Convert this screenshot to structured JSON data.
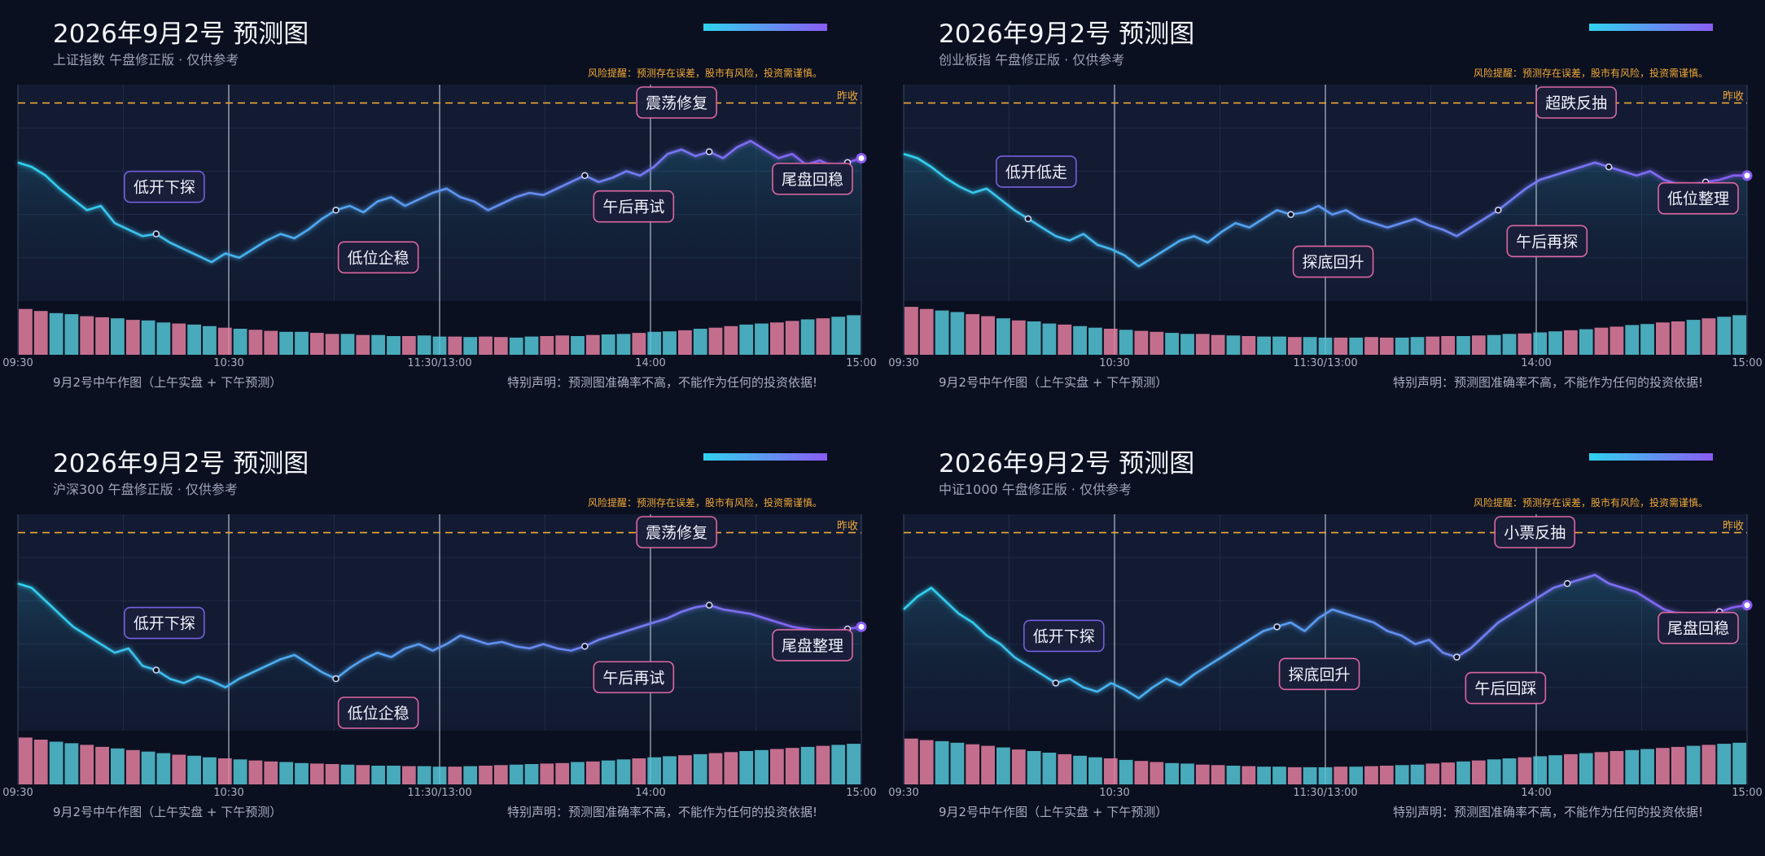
{
  "time_ticks": [
    "09:30",
    "10:30",
    "11:30/13:00",
    "14:00",
    "15:00"
  ],
  "prev_close_label": "昨收",
  "risk_note": "风险提醒：预测存在误差，股市有风险，投资需谨慎。",
  "caption": "9月2号中午作图（上午实盘 + 下午预测）",
  "disclaimer": "特别声明：预测图准确率不高，不能作为任何的投资依据!",
  "colors": {
    "background": "#0b1020",
    "plot_bg": "#142039",
    "line_start": "#2fd2ee",
    "line_end": "#8a5cf3",
    "prev_close": "#f0a938",
    "up_bar": "#e57fa2",
    "down_bar": "#54c6d6",
    "label_border": "#e66aa6"
  },
  "chart_data": [
    {
      "type": "line",
      "title": "2026年9月2号 预测图",
      "subtitle": "上证指数 午盘修正版 · 仅供参考",
      "reference_line": {
        "label": "昨收",
        "value": 1.0
      },
      "series": [
        {
          "values": [
            0.64,
            0.62,
            0.58,
            0.52,
            0.47,
            0.42,
            0.44,
            0.36,
            0.33,
            0.3,
            0.31,
            0.27,
            0.24,
            0.21,
            0.18,
            0.22,
            0.2,
            0.24,
            0.28,
            0.31,
            0.29,
            0.33,
            0.38,
            0.42,
            0.44,
            0.41,
            0.46,
            0.48,
            0.44,
            0.47,
            0.5,
            0.52,
            0.48,
            0.46,
            0.42,
            0.45,
            0.48,
            0.5,
            0.49,
            0.52,
            0.55,
            0.58,
            0.55,
            0.57,
            0.6,
            0.58,
            0.62,
            0.68,
            0.7,
            0.67,
            0.69,
            0.66,
            0.71,
            0.74,
            0.7,
            0.66,
            0.68,
            0.63,
            0.65,
            0.62,
            0.64,
            0.66
          ]
        }
      ],
      "volume": [
        0.88,
        0.84,
        0.8,
        0.78,
        0.74,
        0.72,
        0.7,
        0.67,
        0.66,
        0.62,
        0.6,
        0.58,
        0.55,
        0.52,
        0.5,
        0.48,
        0.46,
        0.44,
        0.44,
        0.42,
        0.4,
        0.4,
        0.38,
        0.38,
        0.36,
        0.36,
        0.37,
        0.35,
        0.35,
        0.34,
        0.35,
        0.34,
        0.33,
        0.35,
        0.36,
        0.37,
        0.36,
        0.38,
        0.39,
        0.4,
        0.42,
        0.44,
        0.45,
        0.47,
        0.5,
        0.52,
        0.55,
        0.58,
        0.6,
        0.62,
        0.65,
        0.68,
        0.7,
        0.73,
        0.76
      ],
      "annotations": [
        {
          "text": "低开下探",
          "index": 10
        },
        {
          "text": "低位企稳",
          "index": 23
        },
        {
          "text": "午后再试",
          "index": 41
        },
        {
          "text": "震荡修复",
          "index": 50
        },
        {
          "text": "尾盘回稳",
          "index": 60
        }
      ]
    },
    {
      "type": "line",
      "title": "2026年9月2号 预测图",
      "subtitle": "创业板指 午盘修正版 · 仅供参考",
      "reference_line": {
        "label": "昨收",
        "value": 1.0
      },
      "series": [
        {
          "values": [
            0.68,
            0.66,
            0.62,
            0.57,
            0.53,
            0.5,
            0.52,
            0.47,
            0.42,
            0.38,
            0.34,
            0.3,
            0.28,
            0.31,
            0.26,
            0.24,
            0.21,
            0.16,
            0.2,
            0.24,
            0.28,
            0.3,
            0.27,
            0.32,
            0.36,
            0.34,
            0.38,
            0.42,
            0.4,
            0.41,
            0.44,
            0.4,
            0.42,
            0.38,
            0.36,
            0.34,
            0.36,
            0.38,
            0.35,
            0.33,
            0.3,
            0.34,
            0.38,
            0.42,
            0.47,
            0.52,
            0.56,
            0.58,
            0.6,
            0.62,
            0.64,
            0.62,
            0.6,
            0.58,
            0.6,
            0.56,
            0.54,
            0.53,
            0.55,
            0.56,
            0.58,
            0.58
          ]
        }
      ],
      "volume": [
        0.92,
        0.88,
        0.85,
        0.82,
        0.78,
        0.74,
        0.7,
        0.66,
        0.64,
        0.6,
        0.58,
        0.55,
        0.52,
        0.5,
        0.48,
        0.46,
        0.44,
        0.42,
        0.4,
        0.4,
        0.38,
        0.37,
        0.36,
        0.35,
        0.35,
        0.34,
        0.34,
        0.33,
        0.33,
        0.33,
        0.34,
        0.33,
        0.33,
        0.34,
        0.35,
        0.36,
        0.36,
        0.37,
        0.38,
        0.4,
        0.41,
        0.43,
        0.45,
        0.47,
        0.49,
        0.52,
        0.54,
        0.57,
        0.59,
        0.62,
        0.64,
        0.67,
        0.7,
        0.73,
        0.76
      ],
      "annotations": [
        {
          "text": "低开低走",
          "index": 9
        },
        {
          "text": "探底回升",
          "index": 28
        },
        {
          "text": "午后再探",
          "index": 43
        },
        {
          "text": "超跌反抽",
          "index": 51
        },
        {
          "text": "低位整理",
          "index": 58
        }
      ]
    },
    {
      "type": "line",
      "title": "2026年9月2号 预测图",
      "subtitle": "沪深300 午盘修正版 · 仅供参考",
      "reference_line": {
        "label": "昨收",
        "value": 1.0
      },
      "series": [
        {
          "values": [
            0.68,
            0.66,
            0.6,
            0.54,
            0.48,
            0.44,
            0.4,
            0.36,
            0.38,
            0.3,
            0.28,
            0.24,
            0.22,
            0.25,
            0.23,
            0.2,
            0.24,
            0.27,
            0.3,
            0.33,
            0.35,
            0.31,
            0.27,
            0.24,
            0.29,
            0.33,
            0.36,
            0.34,
            0.38,
            0.4,
            0.37,
            0.4,
            0.44,
            0.42,
            0.4,
            0.41,
            0.39,
            0.38,
            0.4,
            0.38,
            0.37,
            0.39,
            0.42,
            0.44,
            0.46,
            0.48,
            0.5,
            0.52,
            0.55,
            0.57,
            0.58,
            0.56,
            0.55,
            0.54,
            0.52,
            0.5,
            0.48,
            0.47,
            0.46,
            0.45,
            0.47,
            0.48
          ]
        }
      ],
      "volume": [
        0.9,
        0.86,
        0.82,
        0.79,
        0.76,
        0.72,
        0.69,
        0.66,
        0.63,
        0.6,
        0.57,
        0.55,
        0.52,
        0.5,
        0.48,
        0.46,
        0.44,
        0.43,
        0.41,
        0.4,
        0.39,
        0.38,
        0.37,
        0.36,
        0.36,
        0.35,
        0.35,
        0.34,
        0.34,
        0.35,
        0.36,
        0.37,
        0.38,
        0.39,
        0.4,
        0.41,
        0.43,
        0.44,
        0.46,
        0.48,
        0.5,
        0.52,
        0.54,
        0.56,
        0.58,
        0.6,
        0.62,
        0.64,
        0.66,
        0.68,
        0.7,
        0.72,
        0.74,
        0.76,
        0.78
      ],
      "annotations": [
        {
          "text": "低开下探",
          "index": 10
        },
        {
          "text": "低位企稳",
          "index": 23
        },
        {
          "text": "午后再试",
          "index": 41
        },
        {
          "text": "震荡修复",
          "index": 50
        },
        {
          "text": "尾盘整理",
          "index": 60
        }
      ]
    },
    {
      "type": "line",
      "title": "2026年9月2号 预测图",
      "subtitle": "中证1000 午盘修正版 · 仅供参考",
      "reference_line": {
        "label": "昨收",
        "value": 1.0
      },
      "series": [
        {
          "values": [
            0.56,
            0.62,
            0.66,
            0.6,
            0.54,
            0.5,
            0.44,
            0.4,
            0.34,
            0.3,
            0.26,
            0.22,
            0.24,
            0.2,
            0.18,
            0.22,
            0.19,
            0.15,
            0.2,
            0.24,
            0.21,
            0.26,
            0.3,
            0.34,
            0.38,
            0.42,
            0.46,
            0.48,
            0.5,
            0.46,
            0.52,
            0.56,
            0.54,
            0.52,
            0.5,
            0.46,
            0.44,
            0.4,
            0.42,
            0.36,
            0.34,
            0.38,
            0.44,
            0.5,
            0.54,
            0.58,
            0.62,
            0.66,
            0.68,
            0.7,
            0.72,
            0.68,
            0.66,
            0.64,
            0.6,
            0.56,
            0.54,
            0.52,
            0.53,
            0.55,
            0.57,
            0.58
          ]
        }
      ],
      "volume": [
        0.88,
        0.85,
        0.83,
        0.8,
        0.77,
        0.74,
        0.71,
        0.67,
        0.64,
        0.61,
        0.58,
        0.55,
        0.52,
        0.5,
        0.47,
        0.45,
        0.43,
        0.41,
        0.4,
        0.38,
        0.37,
        0.36,
        0.35,
        0.34,
        0.34,
        0.33,
        0.33,
        0.33,
        0.34,
        0.34,
        0.35,
        0.36,
        0.37,
        0.38,
        0.4,
        0.42,
        0.44,
        0.46,
        0.48,
        0.5,
        0.52,
        0.54,
        0.56,
        0.58,
        0.6,
        0.62,
        0.64,
        0.66,
        0.68,
        0.7,
        0.72,
        0.74,
        0.76,
        0.78,
        0.8
      ],
      "annotations": [
        {
          "text": "低开下探",
          "index": 11
        },
        {
          "text": "探底回升",
          "index": 27
        },
        {
          "text": "午后回踩",
          "index": 40
        },
        {
          "text": "小票反抽",
          "index": 48
        },
        {
          "text": "尾盘回稳",
          "index": 59
        }
      ]
    }
  ]
}
